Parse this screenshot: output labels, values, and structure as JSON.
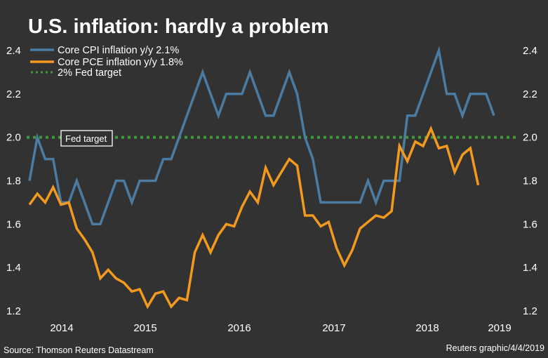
{
  "chart_data": {
    "type": "line",
    "title": "U.S. inflation: hardly a problem",
    "xlabel": "",
    "ylabel": "",
    "ylim": [
      1.2,
      2.4
    ],
    "yticks": [
      "2.4",
      "2.2",
      "2.0",
      "1.8",
      "1.6",
      "1.4",
      "1.2"
    ],
    "ytick_values": [
      2.4,
      2.2,
      2.0,
      1.8,
      1.6,
      1.4,
      1.2
    ],
    "xticks": [
      "2014",
      "2015",
      "2016",
      "2017",
      "2018",
      "2019"
    ],
    "x_start": "2013-09",
    "x_frequency": "monthly",
    "grid": false,
    "legend_position": "top-left",
    "series": [
      {
        "name": "Core CPI inflation y/y 2.1%",
        "color": "#4a7ca3",
        "values": [
          1.8,
          2.0,
          1.9,
          1.9,
          1.7,
          1.7,
          1.8,
          1.7,
          1.6,
          1.6,
          1.7,
          1.8,
          1.8,
          1.7,
          1.8,
          1.8,
          1.8,
          1.9,
          1.9,
          2.0,
          2.1,
          2.2,
          2.3,
          2.2,
          2.1,
          2.2,
          2.2,
          2.2,
          2.3,
          2.2,
          2.1,
          2.1,
          2.2,
          2.3,
          2.2,
          2.0,
          1.9,
          1.7,
          1.7,
          1.7,
          1.7,
          1.7,
          1.7,
          1.8,
          1.7,
          1.8,
          1.8,
          1.8,
          2.1,
          2.1,
          2.2,
          2.3,
          2.4,
          2.2,
          2.2,
          2.1,
          2.2,
          2.2,
          2.2,
          2.1
        ]
      },
      {
        "name": "Core PCE inflation y/y 1.8%",
        "color": "#f39a1e",
        "values": [
          1.69,
          1.74,
          1.7,
          1.77,
          1.69,
          1.7,
          1.58,
          1.53,
          1.47,
          1.35,
          1.39,
          1.35,
          1.33,
          1.29,
          1.3,
          1.22,
          1.28,
          1.29,
          1.22,
          1.26,
          1.25,
          1.47,
          1.55,
          1.47,
          1.55,
          1.6,
          1.59,
          1.68,
          1.75,
          1.7,
          1.86,
          1.78,
          1.84,
          1.9,
          1.87,
          1.64,
          1.64,
          1.59,
          1.61,
          1.49,
          1.41,
          1.48,
          1.58,
          1.61,
          1.64,
          1.63,
          1.66,
          1.96,
          1.89,
          1.98,
          1.96,
          2.04,
          1.95,
          1.96,
          1.84,
          1.92,
          1.95,
          1.78
        ]
      },
      {
        "name": "2% Fed target",
        "color": "#3f9a3a",
        "style": "dotted",
        "value": 2.0
      }
    ],
    "annotations": [
      {
        "text": "Fed target",
        "at_value": 2.0
      }
    ],
    "source": "Source: Thomson Reuters Datastream",
    "credit": "Reuters graphic/4/4/2019"
  }
}
